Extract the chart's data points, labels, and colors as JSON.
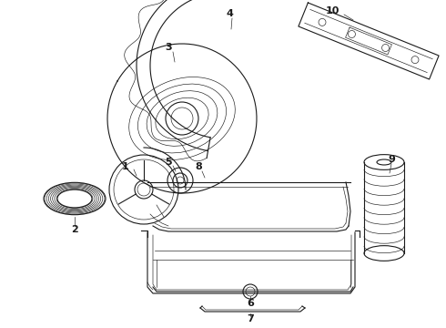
{
  "bg_color": "#ffffff",
  "line_color": "#1a1a1a",
  "lw": 0.8,
  "tlw": 0.45,
  "figsize": [
    4.9,
    3.6
  ],
  "dpi": 100,
  "xlim": [
    0,
    490
  ],
  "ylim": [
    0,
    360
  ]
}
